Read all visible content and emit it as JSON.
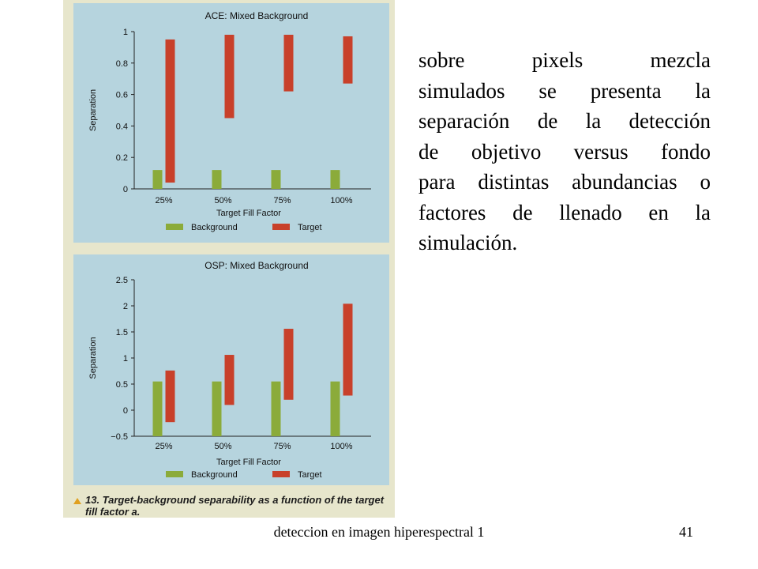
{
  "chart_data": [
    {
      "type": "bar",
      "title": "ACE: Mixed Background",
      "xlabel": "Target Fill Factor",
      "ylabel": "Separation",
      "categories": [
        "25%",
        "50%",
        "75%",
        "100%"
      ],
      "ylim": [
        0,
        1
      ],
      "yticks": [
        0,
        0.2,
        0.4,
        0.6,
        0.8,
        1
      ],
      "ytick_labels": [
        "0",
        "0.2",
        "0.4",
        "0.6",
        "0.8",
        "1"
      ],
      "grid": false,
      "legend_position": "bottom",
      "series": [
        {
          "name": "Background",
          "color": "#8bab3a",
          "low": [
            0,
            0,
            0,
            0
          ],
          "high": [
            0.12,
            0.12,
            0.12,
            0.12
          ]
        },
        {
          "name": "Target",
          "color": "#c8402a",
          "low": [
            0.04,
            0.45,
            0.62,
            0.67
          ],
          "high": [
            0.95,
            0.98,
            0.98,
            0.97
          ]
        }
      ]
    },
    {
      "type": "bar",
      "title": "OSP: Mixed Background",
      "xlabel": "Target Fill Factor",
      "ylabel": "Separation",
      "categories": [
        "25%",
        "50%",
        "75%",
        "100%"
      ],
      "ylim": [
        -0.5,
        2.5
      ],
      "yticks": [
        -0.5,
        0,
        0.5,
        1,
        1.5,
        2,
        2.5
      ],
      "ytick_labels": [
        "−0.5",
        "0",
        "0.5",
        "1",
        "1.5",
        "2",
        "2.5"
      ],
      "grid": false,
      "legend_position": "bottom",
      "series": [
        {
          "name": "Background",
          "color": "#8bab3a",
          "low": [
            -0.5,
            -0.5,
            -0.5,
            -0.5
          ],
          "high": [
            0.55,
            0.55,
            0.55,
            0.55
          ]
        },
        {
          "name": "Target",
          "color": "#c8402a",
          "low": [
            -0.23,
            0.1,
            0.2,
            0.28
          ],
          "high": [
            0.76,
            1.06,
            1.56,
            2.04
          ]
        }
      ]
    }
  ],
  "caption": "13. Target-background separability as a function of the target fill factor a.",
  "side_text_lines": [
    "sobre pixels mezcla",
    "simulados se presenta la",
    "separación de la detección",
    "de objetivo versus fondo",
    "para distintas abundancias o",
    "factores de llenado en la",
    "simulación."
  ],
  "footer": {
    "title": "deteccion en imagen hiperespectral 1",
    "page_number": "41"
  },
  "colors": {
    "panel_background": "#b6d4de",
    "page_background": "#e7e6cc",
    "background_bar": "#8bab3a",
    "target_bar": "#c8402a"
  }
}
